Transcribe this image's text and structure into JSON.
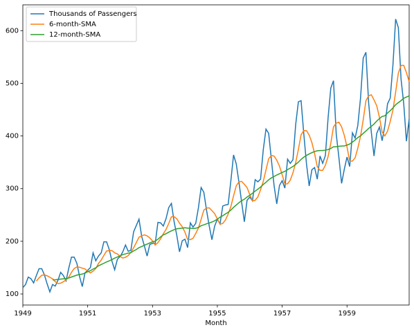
{
  "chart_data": {
    "type": "line",
    "x_label": "Month",
    "x": [
      1949,
      1949.083,
      1949.167,
      1949.25,
      1949.333,
      1949.417,
      1949.5,
      1949.583,
      1949.667,
      1949.75,
      1949.833,
      1949.917,
      1950,
      1950.083,
      1950.167,
      1950.25,
      1950.333,
      1950.417,
      1950.5,
      1950.583,
      1950.667,
      1950.75,
      1950.833,
      1950.917,
      1951,
      1951.083,
      1951.167,
      1951.25,
      1951.333,
      1951.417,
      1951.5,
      1951.583,
      1951.667,
      1951.75,
      1951.833,
      1951.917,
      1952,
      1952.083,
      1952.167,
      1952.25,
      1952.333,
      1952.417,
      1952.5,
      1952.583,
      1952.667,
      1952.75,
      1952.833,
      1952.917,
      1953,
      1953.083,
      1953.167,
      1953.25,
      1953.333,
      1953.417,
      1953.5,
      1953.583,
      1953.667,
      1953.75,
      1953.833,
      1953.917,
      1954,
      1954.083,
      1954.167,
      1954.25,
      1954.333,
      1954.417,
      1954.5,
      1954.583,
      1954.667,
      1954.75,
      1954.833,
      1954.917,
      1955,
      1955.083,
      1955.167,
      1955.25,
      1955.333,
      1955.417,
      1955.5,
      1955.583,
      1955.667,
      1955.75,
      1955.833,
      1955.917,
      1956,
      1956.083,
      1956.167,
      1956.25,
      1956.333,
      1956.417,
      1956.5,
      1956.583,
      1956.667,
      1956.75,
      1956.833,
      1956.917,
      1957,
      1957.083,
      1957.167,
      1957.25,
      1957.333,
      1957.417,
      1957.5,
      1957.583,
      1957.667,
      1957.75,
      1957.833,
      1957.917,
      1958,
      1958.083,
      1958.167,
      1958.25,
      1958.333,
      1958.417,
      1958.5,
      1958.583,
      1958.667,
      1958.75,
      1958.833,
      1958.917,
      1959,
      1959.083,
      1959.167,
      1959.25,
      1959.333,
      1959.417,
      1959.5,
      1959.583,
      1959.667,
      1959.75,
      1959.833,
      1959.917,
      1960,
      1960.083,
      1960.167,
      1960.25,
      1960.333,
      1960.417,
      1960.5,
      1960.583,
      1960.667,
      1960.75,
      1960.833,
      1960.917
    ],
    "series": [
      {
        "name": "Thousands of Passengers",
        "color": "#1f77b4",
        "values": [
          112,
          118,
          132,
          129,
          121,
          135,
          148,
          148,
          136,
          119,
          104,
          118,
          115,
          126,
          141,
          135,
          125,
          149,
          170,
          170,
          158,
          133,
          114,
          140,
          145,
          150,
          178,
          163,
          172,
          178,
          199,
          199,
          184,
          162,
          146,
          166,
          171,
          180,
          193,
          181,
          183,
          218,
          230,
          242,
          209,
          191,
          172,
          194,
          196,
          196,
          236,
          235,
          229,
          243,
          264,
          272,
          237,
          211,
          180,
          201,
          204,
          188,
          235,
          227,
          234,
          264,
          302,
          293,
          259,
          229,
          203,
          229,
          242,
          233,
          267,
          269,
          270,
          315,
          364,
          347,
          312,
          274,
          237,
          278,
          284,
          277,
          317,
          313,
          318,
          374,
          413,
          405,
          355,
          306,
          271,
          306,
          315,
          301,
          356,
          348,
          355,
          422,
          465,
          467,
          404,
          347,
          305,
          336,
          340,
          318,
          362,
          348,
          363,
          435,
          491,
          505,
          404,
          359,
          310,
          337,
          360,
          342,
          406,
          396,
          420,
          472,
          548,
          559,
          463,
          407,
          362,
          405,
          417,
          391,
          419,
          461,
          472,
          535,
          622,
          606,
          508,
          461,
          390,
          432
        ]
      },
      {
        "name": "6-month-SMA",
        "color": "#ff7f0e",
        "values": [
          null,
          null,
          null,
          null,
          null,
          124.5,
          130.5,
          135.5,
          136.2,
          134.5,
          131.7,
          128.8,
          123.3,
          119.7,
          120.5,
          123.2,
          126.7,
          131.8,
          141,
          148.3,
          151.2,
          150.8,
          149,
          147.5,
          143.3,
          140,
          143.3,
          148.3,
          158,
          164.3,
          173.3,
          181.5,
          182.5,
          182.3,
          178,
          176,
          171.3,
          168.2,
          169.7,
          172.8,
          179,
          187.7,
          197.5,
          207.8,
          210.5,
          212.2,
          210.3,
          206.3,
          200.7,
          193,
          197.5,
          204.8,
          214.3,
          222.5,
          233.8,
          246.5,
          246.7,
          242.7,
          234.5,
          227.5,
          217.5,
          203.5,
          203.2,
          205.8,
          214.8,
          225.3,
          241.7,
          259.2,
          263.2,
          263.5,
          258.3,
          252.5,
          242.5,
          232.5,
          233.8,
          240.5,
          251.7,
          266,
          286.3,
          305.3,
          312.8,
          313.7,
          308.2,
          302,
          288.7,
          277,
          277.8,
          284.3,
          297.8,
          313.8,
          335.3,
          356.7,
          363,
          361.8,
          354,
          342.7,
          326.3,
          309,
          309.2,
          316.2,
          330.2,
          349.5,
          374.5,
          402.2,
          410.2,
          410,
          401.7,
          387.3,
          366.5,
          341.7,
          334.7,
          334.8,
          344.5,
          361,
          386.2,
          417.3,
          424.3,
          426.2,
          417.3,
          401,
          379.2,
          352,
          352.3,
          358.5,
          376.8,
          399.3,
          430.7,
          466.8,
          476.3,
          478.2,
          468.5,
          457.3,
          435.5,
          407.5,
          400.2,
          409.2,
          427.5,
          449.2,
          483.3,
          519.2,
          534,
          534,
          520.3,
          503.2
        ]
      },
      {
        "name": "12-month-SMA",
        "color": "#2ca02c",
        "values": [
          null,
          null,
          null,
          null,
          null,
          null,
          null,
          null,
          null,
          null,
          null,
          126.7,
          126.9,
          127.6,
          128.3,
          128.8,
          129.2,
          130.3,
          132.2,
          134,
          135.8,
          137,
          137.8,
          139.7,
          142.2,
          144.2,
          147.3,
          149.6,
          153.5,
          155.9,
          158.3,
          160.8,
          162.9,
          165.3,
          168,
          170.2,
          172.3,
          174.8,
          176.1,
          177.6,
          178.5,
          181.8,
          184.4,
          188,
          190.1,
          192.5,
          194.7,
          197,
          199.1,
          200.4,
          204,
          208.5,
          212.3,
          214.4,
          217.3,
          219.8,
          222.1,
          223.8,
          224.4,
          225,
          225.7,
          225,
          224.9,
          224.3,
          224.7,
          226.4,
          229.6,
          231.3,
          233.2,
          234.7,
          236.6,
          238.9,
          242.1,
          245.8,
          248.5,
          252,
          255,
          259.3,
          264.4,
          268.9,
          273.3,
          277.1,
          279.9,
          284,
          287.5,
          291.2,
          295.3,
          299,
          303,
          307.9,
          312,
          316.8,
          320.4,
          323.1,
          325.9,
          328.3,
          330.8,
          332.8,
          336.1,
          339,
          342.1,
          346.1,
          350.4,
          355.6,
          359.7,
          363.1,
          365.9,
          368.4,
          370.5,
          371.9,
          372.4,
          372.4,
          373.1,
          374.2,
          376.3,
          379.5,
          379.5,
          380.5,
          380.9,
          381,
          382.7,
          384.7,
          388.3,
          392.3,
          397.1,
          400.2,
          404.9,
          409.4,
          414.3,
          418.3,
          422.7,
          428.3,
          433.1,
          437.2,
          438.3,
          443.7,
          448,
          453.3,
          459.4,
          463.3,
          467.1,
          471.6,
          473.9,
          476.2
        ]
      }
    ],
    "xlim": [
      1949,
      1960.917
    ],
    "xticks": [
      1949,
      1951,
      1953,
      1955,
      1957,
      1959
    ],
    "ylim": [
      79,
      649
    ],
    "yticks": [
      100,
      200,
      300,
      400,
      500,
      600
    ],
    "legend": "upper left"
  }
}
